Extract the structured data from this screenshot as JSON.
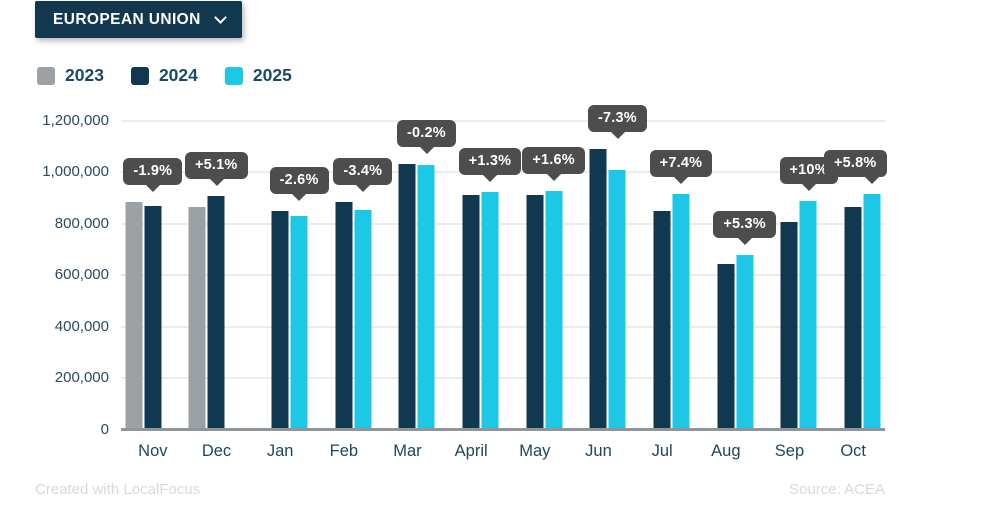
{
  "region_selector": {
    "label": "EUROPEAN UNION",
    "icon": "chevron-down-icon"
  },
  "legend_title": "",
  "colors": {
    "accent_navy": "#12384f",
    "bar_2023": "#9ba1a4",
    "bar_2024": "#103850",
    "bar_2025": "#1dc7e6",
    "tooltip_bg": "#4d4d4d",
    "grid": "#ececec",
    "axis_line": "#8f9598",
    "text_dark": "#1c4a66",
    "footer_text": "#d9d9d9"
  },
  "chart_data": {
    "type": "bar",
    "title": "",
    "categories": [
      "Nov",
      "Dec",
      "Jan",
      "Feb",
      "Mar",
      "April",
      "May",
      "Jun",
      "Jul",
      "Aug",
      "Sep",
      "Oct"
    ],
    "series": [
      {
        "name": "2023",
        "color": "#9ba1a4",
        "values": [
          886000,
          866000,
          null,
          null,
          null,
          null,
          null,
          null,
          null,
          null,
          null,
          null
        ]
      },
      {
        "name": "2024",
        "color": "#103850",
        "values": [
          869000,
          910000,
          852000,
          884000,
          1032000,
          914000,
          912000,
          1090000,
          852000,
          644000,
          808000,
          866000
        ]
      },
      {
        "name": "2025",
        "color": "#1dc7e6",
        "values": [
          null,
          null,
          830000,
          854000,
          1030000,
          926000,
          927000,
          1010000,
          915000,
          678000,
          889000,
          917000
        ]
      }
    ],
    "change_labels": [
      "-1.9%",
      "+5.1%",
      "-2.6%",
      "-3.4%",
      "-0.2%",
      "+1.3%",
      "+1.6%",
      "-7.3%",
      "+7.4%",
      "+5.3%",
      "+10%",
      "+5.8%"
    ],
    "xlabel": "",
    "ylabel": "",
    "ylim": [
      0,
      1200000
    ],
    "yticks": [
      0,
      200000,
      400000,
      600000,
      800000,
      1000000,
      1200000
    ],
    "ytick_labels": [
      "0",
      "200,000",
      "400,000",
      "600,000",
      "800,000",
      "1,000,000",
      "1,200,000"
    ],
    "grid": true,
    "legend_position": "top-left"
  },
  "footer": {
    "credit": "Created with LocalFocus",
    "source": "Source: ACEA"
  }
}
